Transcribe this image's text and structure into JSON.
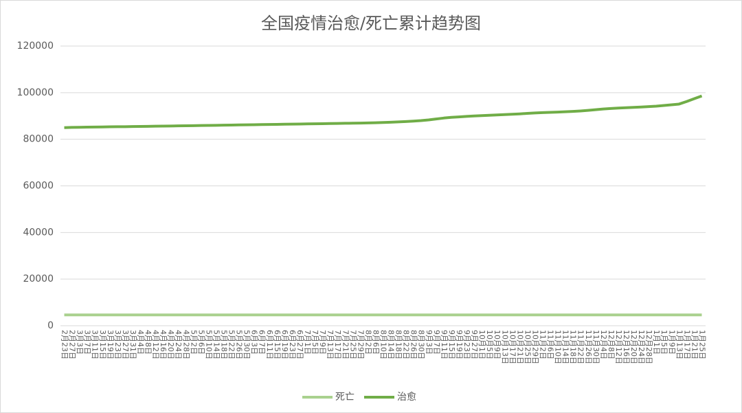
{
  "chart_data": {
    "type": "line",
    "title": "全国疫情治愈/死亡累计趋势图",
    "categories": [
      "2月23日",
      "2月27日",
      "3月3日",
      "3月7日",
      "3月11日",
      "3月15日",
      "3月19日",
      "3月23日",
      "3月27日",
      "3月31日",
      "4月4日",
      "4月8日",
      "4月12日",
      "4月16日",
      "4月20日",
      "4月24日",
      "4月28日",
      "5月2日",
      "5月6日",
      "5月10日",
      "5月14日",
      "5月18日",
      "5月22日",
      "5月26日",
      "5月30日",
      "6月3日",
      "6月7日",
      "6月11日",
      "6月15日",
      "6月19日",
      "6月23日",
      "6月27日",
      "7月1日",
      "7月5日",
      "7月9日",
      "7月13日",
      "7月17日",
      "7月21日",
      "7月25日",
      "7月29日",
      "8月2日",
      "8月6日",
      "8月10日",
      "8月14日",
      "8月18日",
      "8月22日",
      "8月26日",
      "8月30日",
      "9月3日",
      "9月7日",
      "9月11日",
      "9月15日",
      "9月19日",
      "9月23日",
      "9月27日",
      "10月1日",
      "10月5日",
      "10月9日",
      "10月13日",
      "10月17日",
      "10月21日",
      "10月25日",
      "10月29日",
      "11月2日",
      "11月6日",
      "11月10日",
      "11月14日",
      "11月18日",
      "11月22日",
      "11月26日",
      "11月30日",
      "12月4日",
      "12月8日",
      "12月12日",
      "12月16日",
      "12月20日",
      "12月24日",
      "12月28日",
      "1月1日",
      "1月5日",
      "1月9日",
      "1月13日",
      "1月17日",
      "1月21日",
      "1月25日"
    ],
    "series": [
      {
        "name": "死亡",
        "color": "#a9d18e",
        "values": [
          4636,
          4636,
          4636,
          4636,
          4636,
          4636,
          4636,
          4636,
          4636,
          4636,
          4636,
          4636,
          4636,
          4636,
          4636,
          4636,
          4636,
          4636,
          4636,
          4636,
          4636,
          4636,
          4636,
          4636,
          4636,
          4636,
          4636,
          4636,
          4636,
          4636,
          4636,
          4636,
          4636,
          4636,
          4636,
          4636,
          4636,
          4636,
          4636,
          4636,
          4636,
          4636,
          4636,
          4636,
          4636,
          4636,
          4636,
          4636,
          4636,
          4636,
          4636,
          4636,
          4636,
          4636,
          4636,
          4636,
          4636,
          4636,
          4636,
          4636,
          4636,
          4636,
          4636,
          4636,
          4636,
          4636,
          4636,
          4636,
          4636,
          4636,
          4636,
          4636,
          4636,
          4636,
          4636,
          4636,
          4636,
          4636,
          4636,
          4636,
          4636,
          4636,
          4636,
          4636,
          4636
        ]
      },
      {
        "name": "治愈",
        "color": "#70ad47",
        "values": [
          85000,
          85100,
          85150,
          85200,
          85250,
          85300,
          85350,
          85380,
          85400,
          85450,
          85500,
          85550,
          85600,
          85650,
          85700,
          85750,
          85800,
          85850,
          85900,
          85950,
          86000,
          86050,
          86100,
          86150,
          86200,
          86250,
          86300,
          86350,
          86400,
          86450,
          86500,
          86550,
          86600,
          86650,
          86700,
          86750,
          86800,
          86850,
          86900,
          86950,
          87000,
          87100,
          87200,
          87300,
          87450,
          87600,
          87800,
          88000,
          88300,
          88700,
          89100,
          89400,
          89600,
          89800,
          90000,
          90150,
          90300,
          90450,
          90600,
          90750,
          90900,
          91100,
          91300,
          91450,
          91550,
          91650,
          91800,
          91950,
          92150,
          92400,
          92700,
          93000,
          93200,
          93400,
          93550,
          93700,
          93850,
          94000,
          94200,
          94500,
          94800,
          95100,
          96200,
          97400,
          98600
        ]
      }
    ],
    "ylim": [
      0,
      120000
    ],
    "yticks": [
      0,
      20000,
      40000,
      60000,
      80000,
      100000,
      120000
    ],
    "grid": true,
    "legend": "bottom"
  }
}
